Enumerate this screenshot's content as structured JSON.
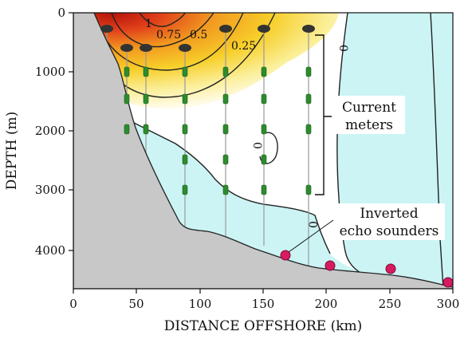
{
  "axes": {
    "x_title": "DISTANCE OFFSHORE (km)",
    "y_title": "DEPTH (m)",
    "x_ticks": [
      "0",
      "50",
      "100",
      "150",
      "200",
      "250",
      "300"
    ],
    "y_ticks": [
      "0",
      "1000",
      "2000",
      "3000",
      "4000"
    ]
  },
  "contour_labels": {
    "c1": "1",
    "c075": "0.75",
    "c05": "0.5",
    "c025": "0.25",
    "c0_top": "0",
    "c0_mid": "0",
    "c0_low": "0"
  },
  "callouts": {
    "current_meters_line1": "Current",
    "current_meters_line2": "meters",
    "ies_line1": "Inverted",
    "ies_line2": "echo sounders"
  },
  "colors": {
    "seafloor": "#c8c8c8",
    "cold_water": "#ccf4f4",
    "current_warm": "#f5c518",
    "current_hot": "#c81e0a",
    "meter": "#2e8b2e",
    "float": "#333333",
    "ies": "#d81b60"
  }
}
